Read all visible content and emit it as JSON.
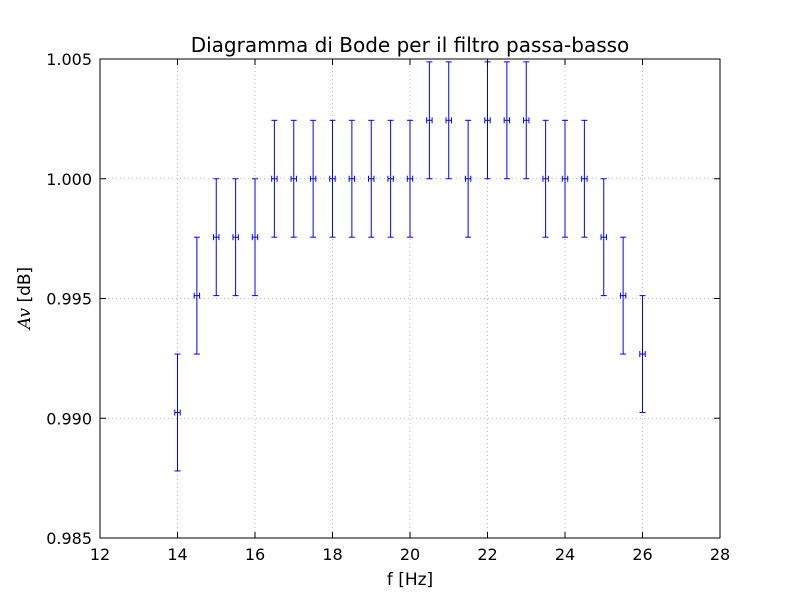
{
  "chart_data": {
    "type": "scatter",
    "title": "Diagramma di Bode per il filtro passa-basso",
    "xlabel": "f [Hz]",
    "ylabel_symbol": "Av",
    "ylabel_unit": " [dB]",
    "xlim": [
      12,
      28
    ],
    "ylim": [
      0.985,
      1.005
    ],
    "xticks": [
      12,
      14,
      16,
      18,
      20,
      22,
      24,
      26,
      28
    ],
    "xtick_labels": [
      "12",
      "14",
      "16",
      "18",
      "20",
      "22",
      "24",
      "26",
      "28"
    ],
    "yticks": [
      0.985,
      0.99,
      0.995,
      1.0,
      1.005
    ],
    "ytick_labels": [
      "0.985",
      "0.990",
      "0.995",
      "1.000",
      "1.005"
    ],
    "grid": true,
    "series_color": "#0000ff",
    "x_error": 0.07,
    "series": [
      {
        "name": "Av",
        "x": [
          14,
          14.5,
          15,
          15.5,
          16,
          16.5,
          17,
          17.5,
          18,
          18.5,
          19,
          19.5,
          20,
          20.5,
          21,
          21.5,
          22,
          22.5,
          23,
          23.5,
          24,
          24.5,
          25,
          25.5,
          26
        ],
        "y": [
          0.99024,
          0.99512,
          0.99756,
          0.99756,
          0.99756,
          1.0,
          1.0,
          1.0,
          1.0,
          1.0,
          1.0,
          1.0,
          1.0,
          1.00244,
          1.00244,
          1.0,
          1.00244,
          1.00244,
          1.00244,
          1.0,
          1.0,
          1.0,
          0.99756,
          0.99512,
          0.99268
        ],
        "yerr": [
          0.00244,
          0.00244,
          0.00244,
          0.00244,
          0.00244,
          0.00244,
          0.00244,
          0.00244,
          0.00244,
          0.00244,
          0.00244,
          0.00244,
          0.00244,
          0.00244,
          0.00244,
          0.00244,
          0.00244,
          0.00244,
          0.00244,
          0.00244,
          0.00244,
          0.00244,
          0.00244,
          0.00244,
          0.00244
        ]
      }
    ]
  }
}
